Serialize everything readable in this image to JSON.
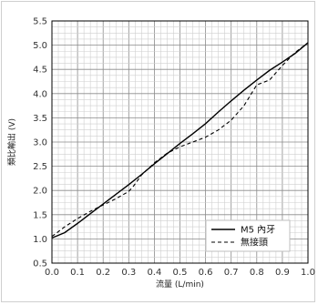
{
  "chart_data": {
    "type": "line",
    "title": "",
    "xlabel": "流量 (L/min)",
    "ylabel": "類比輸出 (V)",
    "xlim": [
      0.0,
      1.0
    ],
    "ylim": [
      0.5,
      5.5
    ],
    "x_ticks": [
      "0.0",
      "0.1",
      "0.2",
      "0.3",
      "0.4",
      "0.5",
      "0.6",
      "0.7",
      "0.8",
      "0.9",
      "1.0"
    ],
    "y_ticks": [
      "0.5",
      "1.0",
      "1.5",
      "2.0",
      "2.5",
      "3.0",
      "3.5",
      "4.0",
      "4.5",
      "5.0",
      "5.5"
    ],
    "grid": true,
    "legend_position": "bottom-right",
    "series": [
      {
        "name": "M5 內牙",
        "style": "solid",
        "color": "#000000",
        "x": [
          0.0,
          0.05,
          0.1,
          0.15,
          0.2,
          0.25,
          0.3,
          0.35,
          0.4,
          0.45,
          0.5,
          0.55,
          0.6,
          0.65,
          0.7,
          0.75,
          0.8,
          0.85,
          0.9,
          0.95,
          1.0
        ],
        "y": [
          1.02,
          1.13,
          1.32,
          1.52,
          1.72,
          1.92,
          2.12,
          2.33,
          2.55,
          2.76,
          2.97,
          3.17,
          3.38,
          3.62,
          3.85,
          4.07,
          4.28,
          4.48,
          4.65,
          4.83,
          5.05
        ]
      },
      {
        "name": "無接頭",
        "style": "dashed",
        "color": "#000000",
        "x": [
          0.0,
          0.05,
          0.1,
          0.15,
          0.2,
          0.25,
          0.3,
          0.32,
          0.35,
          0.4,
          0.45,
          0.5,
          0.55,
          0.6,
          0.65,
          0.7,
          0.75,
          0.8,
          0.85,
          0.9,
          0.95,
          1.0
        ],
        "y": [
          1.05,
          1.25,
          1.42,
          1.57,
          1.7,
          1.83,
          1.98,
          2.1,
          2.32,
          2.57,
          2.77,
          2.9,
          3.0,
          3.1,
          3.25,
          3.45,
          3.75,
          4.18,
          4.28,
          4.58,
          4.85,
          5.05
        ]
      }
    ]
  }
}
